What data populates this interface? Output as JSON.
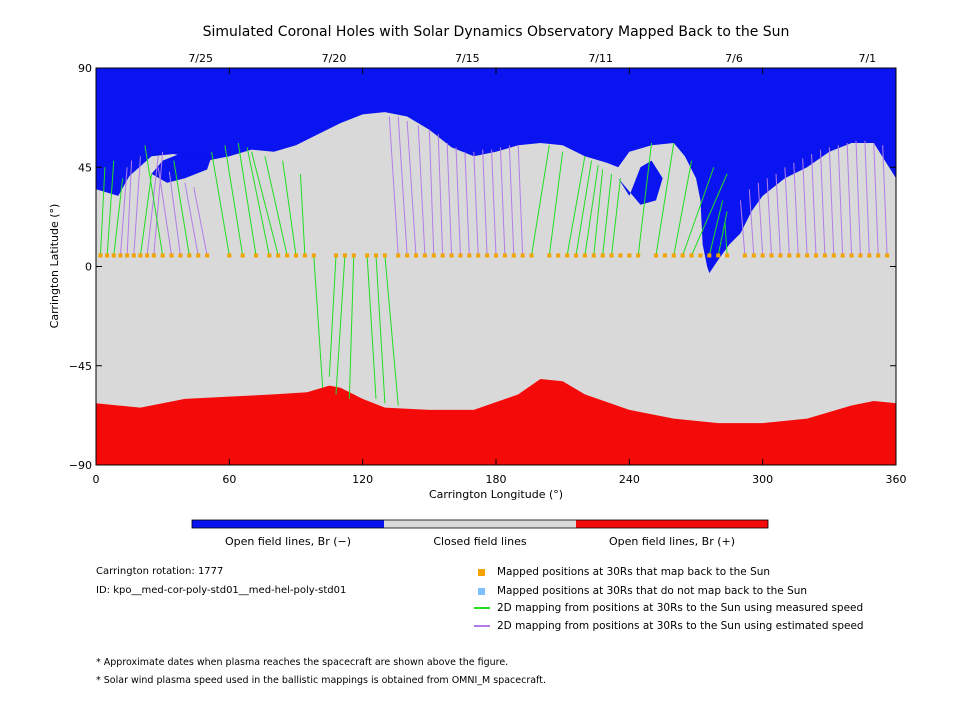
{
  "chart_data": {
    "type": "map",
    "title": "Simulated Coronal Holes with Solar Dynamics Observatory Mapped Back to the Sun",
    "xlabel": "Carrington Longitude (°)",
    "ylabel": "Carrington Latitude (°)",
    "xlim": [
      0,
      360
    ],
    "ylim": [
      -90,
      90
    ],
    "x_ticks": [
      "0",
      "60",
      "120",
      "180",
      "240",
      "300",
      "360"
    ],
    "y_ticks": [
      "90",
      "45",
      "0",
      "−45",
      "−90"
    ],
    "date_ticks": [
      {
        "label": "7/25",
        "lon": 30
      },
      {
        "label": "7/20",
        "lon": 90
      },
      {
        "label": "7/15",
        "lon": 150
      },
      {
        "label": "7/11",
        "lon": 210
      },
      {
        "label": "7/6",
        "lon": 270
      },
      {
        "label": "7/1",
        "lon": 330
      }
    ],
    "colors": {
      "open_negative": "#0a14f0",
      "closed": "#d9d9d9",
      "open_positive": "#f50a0a",
      "mapped_back": "#f5a300",
      "not_mapped": "#7fbfff",
      "measured": "#22dd22",
      "estimated": "#b27de8"
    },
    "north_boundary": [
      [
        0,
        35
      ],
      [
        10,
        32
      ],
      [
        15,
        41
      ],
      [
        25,
        50
      ],
      [
        35,
        51
      ],
      [
        50,
        48
      ],
      [
        60,
        50
      ],
      [
        70,
        53
      ],
      [
        80,
        52
      ],
      [
        90,
        55
      ],
      [
        100,
        60
      ],
      [
        110,
        65
      ],
      [
        120,
        69
      ],
      [
        130,
        70
      ],
      [
        140,
        68
      ],
      [
        150,
        62
      ],
      [
        160,
        54
      ],
      [
        170,
        50
      ],
      [
        180,
        52
      ],
      [
        190,
        55
      ],
      [
        200,
        56
      ],
      [
        210,
        55
      ],
      [
        220,
        50
      ],
      [
        230,
        47
      ],
      [
        235,
        45
      ],
      [
        240,
        52
      ],
      [
        250,
        55
      ],
      [
        260,
        56
      ],
      [
        265,
        50
      ],
      [
        270,
        40
      ],
      [
        272,
        30
      ],
      [
        273,
        10
      ],
      [
        275,
        0
      ],
      [
        276,
        -3
      ],
      [
        280,
        3
      ],
      [
        285,
        10
      ],
      [
        290,
        15
      ],
      [
        295,
        25
      ],
      [
        300,
        32
      ],
      [
        310,
        40
      ],
      [
        320,
        45
      ],
      [
        330,
        52
      ],
      [
        340,
        56
      ],
      [
        350,
        56
      ],
      [
        360,
        40
      ]
    ],
    "south_boundary": [
      [
        0,
        -62
      ],
      [
        10,
        -63
      ],
      [
        20,
        -64
      ],
      [
        30,
        -62
      ],
      [
        40,
        -60
      ],
      [
        60,
        -59
      ],
      [
        80,
        -58
      ],
      [
        95,
        -57
      ],
      [
        105,
        -54
      ],
      [
        110,
        -55
      ],
      [
        120,
        -60
      ],
      [
        130,
        -64
      ],
      [
        150,
        -65
      ],
      [
        170,
        -65
      ],
      [
        190,
        -58
      ],
      [
        200,
        -51
      ],
      [
        210,
        -52
      ],
      [
        220,
        -58
      ],
      [
        240,
        -65
      ],
      [
        260,
        -69
      ],
      [
        280,
        -71
      ],
      [
        300,
        -71
      ],
      [
        320,
        -69
      ],
      [
        340,
        -63
      ],
      [
        350,
        -61
      ],
      [
        360,
        -62
      ]
    ],
    "open_holes_north": [
      {
        "name": "northern-loop-hole",
        "points": [
          [
            25,
            42
          ],
          [
            30,
            48
          ],
          [
            40,
            52
          ],
          [
            52,
            50
          ],
          [
            50,
            44
          ],
          [
            40,
            40
          ],
          [
            32,
            38
          ]
        ]
      },
      {
        "name": "channel-hole",
        "points": [
          [
            235,
            40
          ],
          [
            240,
            32
          ],
          [
            245,
            45
          ],
          [
            250,
            48
          ],
          [
            255,
            40
          ],
          [
            252,
            30
          ],
          [
            245,
            28
          ]
        ]
      }
    ],
    "footpoints_lat": 5,
    "mapped_footpoints_lon": [
      [
        2,
        5
      ],
      [
        5,
        5
      ],
      [
        8,
        5
      ],
      [
        11,
        5
      ],
      [
        14,
        5
      ],
      [
        17,
        5
      ],
      [
        20,
        5
      ],
      [
        23,
        5
      ],
      [
        26,
        5
      ],
      [
        30,
        5
      ],
      [
        34,
        5
      ],
      [
        38,
        5
      ],
      [
        42,
        5
      ],
      [
        46,
        5
      ],
      [
        50,
        5
      ],
      [
        60,
        5
      ],
      [
        66,
        5
      ],
      [
        72,
        5
      ],
      [
        78,
        5
      ],
      [
        82,
        5
      ],
      [
        86,
        5
      ],
      [
        90,
        5
      ],
      [
        94,
        5
      ],
      [
        98,
        5
      ],
      [
        108,
        5
      ],
      [
        112,
        5
      ],
      [
        116,
        5
      ],
      [
        122,
        5
      ],
      [
        126,
        5
      ],
      [
        130,
        5
      ],
      [
        136,
        5
      ],
      [
        140,
        5
      ],
      [
        144,
        5
      ],
      [
        148,
        5
      ],
      [
        152,
        5
      ],
      [
        156,
        5
      ],
      [
        160,
        5
      ],
      [
        164,
        5
      ],
      [
        168,
        5
      ],
      [
        172,
        5
      ],
      [
        176,
        5
      ],
      [
        180,
        5
      ],
      [
        184,
        5
      ],
      [
        188,
        5
      ],
      [
        192,
        5
      ],
      [
        196,
        5
      ],
      [
        204,
        5
      ],
      [
        208,
        5
      ],
      [
        212,
        5
      ],
      [
        216,
        5
      ],
      [
        220,
        5
      ],
      [
        224,
        5
      ],
      [
        228,
        5
      ],
      [
        232,
        5
      ],
      [
        236,
        5
      ],
      [
        240,
        5
      ],
      [
        244,
        5
      ],
      [
        252,
        5
      ],
      [
        256,
        5
      ],
      [
        260,
        5
      ],
      [
        264,
        5
      ],
      [
        268,
        5
      ],
      [
        272,
        5
      ],
      [
        276,
        5
      ],
      [
        280,
        5
      ],
      [
        284,
        5
      ],
      [
        292,
        5
      ],
      [
        296,
        5
      ],
      [
        300,
        5
      ],
      [
        304,
        5
      ],
      [
        308,
        5
      ],
      [
        312,
        5
      ],
      [
        316,
        5
      ],
      [
        320,
        5
      ],
      [
        324,
        5
      ],
      [
        328,
        5
      ],
      [
        332,
        5
      ],
      [
        336,
        5
      ],
      [
        340,
        5
      ],
      [
        344,
        5
      ],
      [
        348,
        5
      ],
      [
        352,
        5
      ],
      [
        356,
        5
      ]
    ],
    "measured_lines": [
      [
        2,
        5,
        4,
        45
      ],
      [
        5,
        5,
        8,
        48
      ],
      [
        8,
        5,
        12,
        40
      ],
      [
        20,
        5,
        25,
        42
      ],
      [
        30,
        5,
        22,
        55
      ],
      [
        42,
        5,
        35,
        48
      ],
      [
        60,
        5,
        52,
        52
      ],
      [
        66,
        5,
        58,
        55
      ],
      [
        72,
        5,
        64,
        56
      ],
      [
        78,
        5,
        68,
        54
      ],
      [
        82,
        5,
        70,
        52
      ],
      [
        86,
        5,
        76,
        50
      ],
      [
        90,
        5,
        84,
        48
      ],
      [
        94,
        5,
        92,
        42
      ],
      [
        98,
        5,
        102,
        -55
      ],
      [
        108,
        5,
        105,
        -50
      ],
      [
        112,
        5,
        108,
        -58
      ],
      [
        116,
        5,
        114,
        -60
      ],
      [
        122,
        5,
        126,
        -60
      ],
      [
        126,
        5,
        130,
        -62
      ],
      [
        130,
        5,
        136,
        -63
      ],
      [
        196,
        5,
        204,
        55
      ],
      [
        204,
        5,
        210,
        52
      ],
      [
        212,
        5,
        220,
        50
      ],
      [
        216,
        5,
        223,
        48
      ],
      [
        220,
        5,
        226,
        46
      ],
      [
        224,
        5,
        228,
        44
      ],
      [
        228,
        5,
        232,
        42
      ],
      [
        232,
        5,
        236,
        40
      ],
      [
        244,
        5,
        250,
        56
      ],
      [
        252,
        5,
        260,
        56
      ],
      [
        260,
        5,
        268,
        48
      ],
      [
        264,
        5,
        278,
        45
      ],
      [
        268,
        5,
        284,
        42
      ],
      [
        276,
        5,
        282,
        30
      ],
      [
        280,
        5,
        284,
        25
      ],
      [
        284,
        5,
        283,
        20
      ]
    ],
    "estimated_lines": [
      [
        11,
        5,
        14,
        45
      ],
      [
        14,
        5,
        16,
        48
      ],
      [
        17,
        5,
        20,
        50
      ],
      [
        23,
        5,
        28,
        50
      ],
      [
        26,
        5,
        30,
        52
      ],
      [
        34,
        5,
        28,
        45
      ],
      [
        38,
        5,
        33,
        43
      ],
      [
        46,
        5,
        40,
        38
      ],
      [
        50,
        5,
        44,
        36
      ],
      [
        136,
        5,
        132,
        68
      ],
      [
        140,
        5,
        136,
        68
      ],
      [
        144,
        5,
        140,
        66
      ],
      [
        148,
        5,
        145,
        64
      ],
      [
        152,
        5,
        150,
        62
      ],
      [
        156,
        5,
        154,
        60
      ],
      [
        160,
        5,
        158,
        56
      ],
      [
        164,
        5,
        162,
        54
      ],
      [
        168,
        5,
        166,
        52
      ],
      [
        172,
        5,
        170,
        52
      ],
      [
        176,
        5,
        174,
        53
      ],
      [
        180,
        5,
        178,
        53
      ],
      [
        184,
        5,
        182,
        54
      ],
      [
        188,
        5,
        186,
        55
      ],
      [
        192,
        5,
        190,
        55
      ],
      [
        292,
        5,
        290,
        30
      ],
      [
        296,
        5,
        294,
        35
      ],
      [
        300,
        5,
        298,
        38
      ],
      [
        304,
        5,
        302,
        40
      ],
      [
        308,
        5,
        306,
        42
      ],
      [
        312,
        5,
        310,
        45
      ],
      [
        316,
        5,
        314,
        47
      ],
      [
        320,
        5,
        318,
        49
      ],
      [
        324,
        5,
        322,
        51
      ],
      [
        328,
        5,
        326,
        53
      ],
      [
        332,
        5,
        330,
        54
      ],
      [
        336,
        5,
        334,
        55
      ],
      [
        340,
        5,
        338,
        56
      ],
      [
        344,
        5,
        342,
        57
      ],
      [
        348,
        5,
        346,
        57
      ],
      [
        352,
        5,
        350,
        56
      ],
      [
        356,
        5,
        354,
        55
      ]
    ]
  },
  "colorbar": {
    "labels": [
      "Open field lines, Br (−)",
      "Closed field lines",
      "Open field lines, Br (+)"
    ]
  },
  "info": {
    "rotation": "Carrington rotation: 1777",
    "id": "ID: kpo__med-cor-poly-std01__med-hel-poly-std01"
  },
  "legend": [
    {
      "label": "Mapped positions at 30Rs that map back to the Sun",
      "kind": "square",
      "color": "#f5a300"
    },
    {
      "label": "Mapped positions at 30Rs that do not map back to the Sun",
      "kind": "square",
      "color": "#7fbfff"
    },
    {
      "label": "2D mapping from positions at 30Rs to the Sun using measured speed",
      "kind": "line",
      "color": "#22dd22"
    },
    {
      "label": "2D mapping from positions at 30Rs to the Sun using estimated speed",
      "kind": "line",
      "color": "#b27de8"
    }
  ],
  "notes": [
    "* Approximate dates when plasma reaches the spacecraft are shown above the figure.",
    "* Solar wind plasma speed used in the ballistic mappings is obtained from OMNI_M spacecraft."
  ]
}
